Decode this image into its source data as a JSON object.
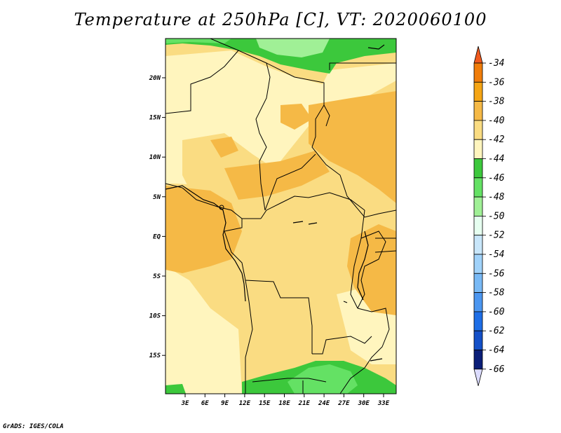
{
  "title": "Temperature at 250hPa [C], VT: 2020060100",
  "credit": "GrADS: IGES/COLA",
  "map": {
    "x_ticks": [
      "3E",
      "6E",
      "9E",
      "12E",
      "15E",
      "18E",
      "21E",
      "24E",
      "27E",
      "30E",
      "33E"
    ],
    "y_ticks": [
      "20N",
      "15N",
      "10N",
      "5N",
      "EQ",
      "5S",
      "10S",
      "15S"
    ]
  },
  "colorbar": {
    "levels": [
      "-34",
      "-36",
      "-38",
      "-40",
      "-42",
      "-44",
      "-46",
      "-48",
      "-50",
      "-52",
      "-54",
      "-56",
      "-58",
      "-60",
      "-62",
      "-64",
      "-66"
    ],
    "colors": [
      "#f05a1e",
      "#f07d0a",
      "#f5a514",
      "#f5b946",
      "#fadc82",
      "#fff5be",
      "#3cc83c",
      "#64e164",
      "#a0f096",
      "#e6fff0",
      "#c8e6fa",
      "#a0d2fa",
      "#78b9f5",
      "#4b96f0",
      "#1e6ee6",
      "#1450c8",
      "#0a1e78",
      "#dcdcff"
    ]
  },
  "colors": {
    "warm_orange": "#f5b946",
    "light_orange": "#fadc82",
    "pale_yellow": "#fff5be",
    "green": "#3cc83c",
    "light_green": "#64e164",
    "pale_green": "#a0f096"
  }
}
